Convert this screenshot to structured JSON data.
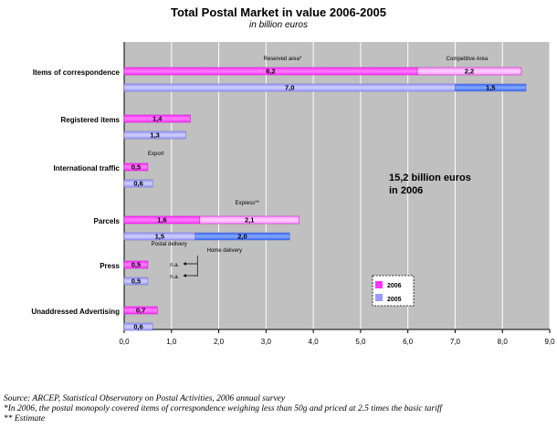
{
  "title": "Total Postal Market in value 2006-2005",
  "subtitle": "in billion euros",
  "colors": {
    "y2006": "#ff33ff",
    "y2006_light": "#ff99ff",
    "y2005": "#9999ff",
    "y2005_dark": "#3366ee",
    "plot_bg": "#c0c0c0"
  },
  "chart_data": {
    "type": "bar",
    "orientation": "horizontal",
    "stacked": true,
    "categories": [
      "Items of correspondence",
      "Registered items",
      "International traffic",
      "Parcels",
      "Press",
      "Unaddressed Advertising"
    ],
    "xlim": [
      0,
      9
    ],
    "xticks": [
      "0,0",
      "1,0",
      "2,0",
      "3,0",
      "4,0",
      "5,0",
      "6,0",
      "7,0",
      "8,0",
      "9,0"
    ],
    "grid": true,
    "legend": {
      "position": "bottom-right",
      "items": [
        "2006",
        "2005"
      ]
    },
    "series": [
      {
        "name": "2006",
        "segments": [
          [
            {
              "value": 6.2,
              "label": "6,2"
            },
            {
              "value": 2.2,
              "label": "2,2"
            }
          ],
          [
            {
              "value": 1.4,
              "label": "1,4"
            }
          ],
          [
            {
              "value": 0.5,
              "label": "0,5"
            }
          ],
          [
            {
              "value": 1.6,
              "label": "1,6"
            },
            {
              "value": 2.1,
              "label": "2,1"
            }
          ],
          [
            {
              "value": 0.5,
              "label": "0,5"
            }
          ],
          [
            {
              "value": 0.7,
              "label": "0,7"
            }
          ]
        ]
      },
      {
        "name": "2005",
        "segments": [
          [
            {
              "value": 7.0,
              "label": "7,0"
            },
            {
              "value": 1.5,
              "label": "1,5"
            }
          ],
          [
            {
              "value": 1.3,
              "label": "1,3"
            }
          ],
          [
            {
              "value": 0.6,
              "label": "0,6"
            }
          ],
          [
            {
              "value": 1.5,
              "label": "1,5"
            },
            {
              "value": 2.0,
              "label": "2,0"
            }
          ],
          [
            {
              "value": 0.5,
              "label": "0,5"
            }
          ],
          [
            {
              "value": 0.6,
              "label": "0,6"
            }
          ]
        ]
      }
    ],
    "annotations": {
      "reserved_area": "Reserved area*",
      "competitive_area": "Competitive Area",
      "export": "Export",
      "express": "Express**",
      "postal_delivery": "Postal delivery",
      "home_delivery": "Home delivery",
      "na_2006": "n.a.",
      "na_2005": "n.a.",
      "total_line1": "15,2 billion euros",
      "total_line2": "in 2006"
    }
  },
  "notes": {
    "source": "Source: ARCEP, Statistical Observatory on Postal Activities, 2006 annual survey",
    "footnote1": "*In 2006, the postal monopoly covered items of correspondence weighing less than 50g and priced at 2.5 times the basic tariff",
    "footnote2": "** Estimate"
  }
}
